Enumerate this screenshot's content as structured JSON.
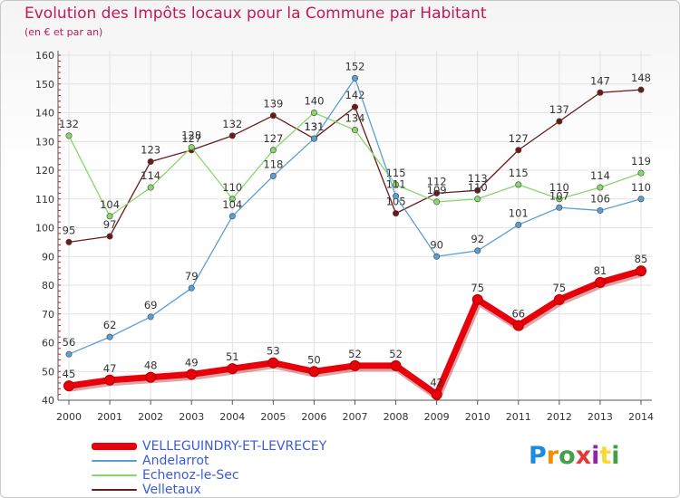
{
  "title": "Evolution des Impôts locaux pour la Commune par Habitant",
  "subtitle": "(en € et par an)",
  "logo": {
    "letters": [
      "P",
      "r",
      "o",
      "x",
      "i",
      "t",
      "i"
    ],
    "colors": [
      "#1e88e5",
      "#fb8c00",
      "#43a047",
      "#e53935",
      "#8e24aa",
      "#fdd835",
      "#43a047"
    ]
  },
  "chart_data": {
    "type": "line",
    "title": "Evolution des Impôts locaux pour la Commune par Habitant",
    "subtitle": "(en € et par an)",
    "x": [
      "2000",
      "2001",
      "2002",
      "2003",
      "2004",
      "2005",
      "2006",
      "2007",
      "2008",
      "2009",
      "2010",
      "2011",
      "2012",
      "2013",
      "2014"
    ],
    "ylim": [
      40,
      160
    ],
    "yticks": [
      "40",
      "50",
      "60",
      "70",
      "80",
      "90",
      "100",
      "110",
      "120",
      "130",
      "140",
      "150",
      "160"
    ],
    "grid": true,
    "legend_position": "bottom-left",
    "series": [
      {
        "name": "Velletaux",
        "color": "#6b1a1a",
        "values": [
          95,
          97,
          123,
          127,
          132,
          139,
          131,
          142,
          105,
          112,
          113,
          127,
          137,
          147,
          148
        ]
      },
      {
        "name": "Echenoz-le-Sec",
        "color": "#86d86a",
        "values": [
          132,
          104,
          114,
          128,
          110,
          127,
          140,
          134,
          115,
          109,
          110,
          115,
          110,
          114,
          119
        ]
      },
      {
        "name": "Andelarrot",
        "color": "#5a9fd4",
        "values": [
          56,
          62,
          69,
          79,
          104,
          118,
          131,
          152,
          111,
          90,
          92,
          101,
          107,
          106,
          110
        ]
      },
      {
        "name": "VELLEGUINDRY-ET-LEVRECEY",
        "color": "#e8000b",
        "values": [
          45,
          47,
          48,
          49,
          51,
          53,
          50,
          52,
          52,
          42,
          75,
          66,
          75,
          81,
          85
        ]
      }
    ],
    "legend": [
      "VELLEGUINDRY-ET-LEVRECEY",
      "Andelarrot",
      "Echenoz-le-Sec",
      "Velletaux"
    ]
  }
}
